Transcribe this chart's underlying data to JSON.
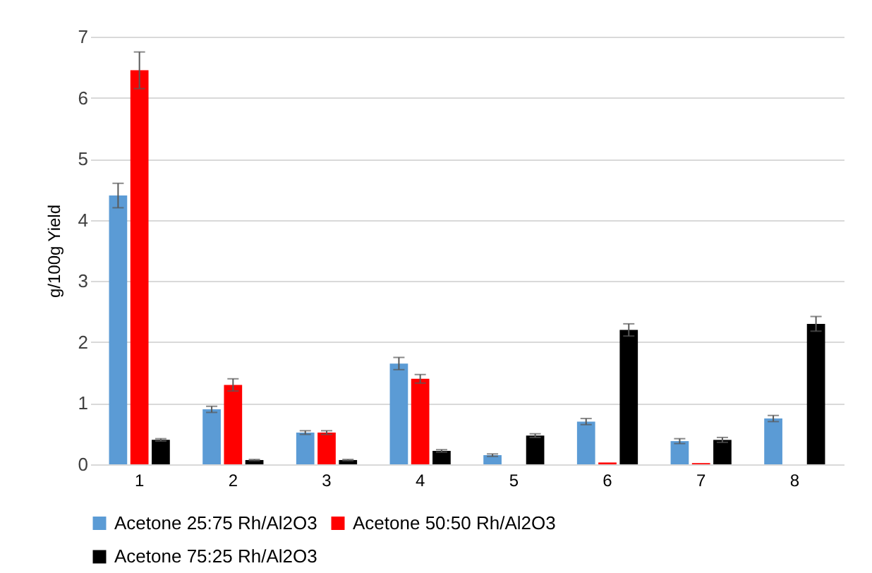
{
  "chart_data": {
    "type": "bar",
    "ylabel": "g/100g Yield",
    "categories": [
      "1",
      "2",
      "3",
      "4",
      "5",
      "6",
      "7",
      "8"
    ],
    "series": [
      {
        "name": "Acetone 25:75  Rh/Al2O3",
        "color": "#5b9bd5",
        "values": [
          4.4,
          0.9,
          0.52,
          1.65,
          0.15,
          0.7,
          0.38,
          0.75
        ],
        "errors": [
          0.2,
          0.05,
          0.03,
          0.1,
          0.02,
          0.05,
          0.04,
          0.05
        ]
      },
      {
        "name": "Acetone 50:50 Rh/Al2O3",
        "color": "#ff0000",
        "values": [
          6.45,
          1.3,
          0.52,
          1.4,
          null,
          0.03,
          0.02,
          null
        ],
        "errors": [
          0.3,
          0.1,
          0.03,
          0.07,
          null,
          null,
          null,
          null
        ]
      },
      {
        "name": "Acetone 75:25  Rh/Al2O3",
        "color": "#000000",
        "values": [
          0.4,
          0.07,
          0.07,
          0.22,
          0.47,
          2.2,
          0.4,
          2.3
        ],
        "errors": [
          0.02,
          0.01,
          0.01,
          0.02,
          0.03,
          0.1,
          0.04,
          0.12
        ]
      }
    ],
    "ylim": [
      0,
      7
    ],
    "yticks": [
      0,
      1,
      2,
      3,
      4,
      5,
      6,
      7
    ],
    "grid": "y",
    "legend": "bottom"
  }
}
